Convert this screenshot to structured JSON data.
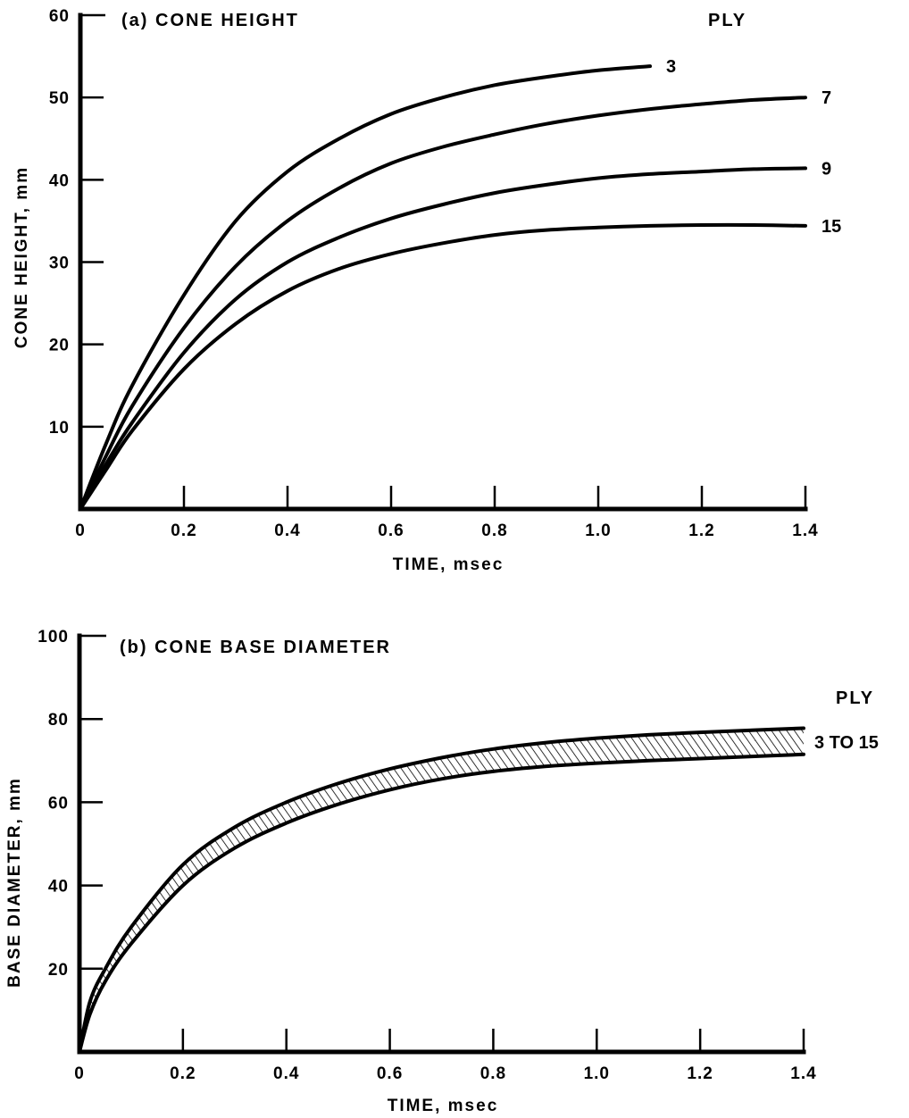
{
  "chart_data": [
    {
      "type": "line",
      "title": "(a)  CONE HEIGHT",
      "xlabel": "TIME,  msec",
      "ylabel": "CONE HEIGHT,  mm",
      "xlim": [
        0,
        1.4
      ],
      "ylim": [
        0,
        60
      ],
      "x_tick_labels": [
        "0",
        "0.2",
        "0.4",
        "0.6",
        "0.8",
        "1.0",
        "1.2",
        "1.4"
      ],
      "y_tick_labels": [
        "10",
        "20",
        "30",
        "40",
        "50",
        "60"
      ],
      "legend_title": "PLY",
      "grid": false,
      "series": [
        {
          "name": "3",
          "x": [
            0,
            0.05,
            0.1,
            0.2,
            0.3,
            0.4,
            0.5,
            0.6,
            0.7,
            0.8,
            0.9,
            1.0,
            1.1
          ],
          "y": [
            0,
            8,
            15,
            26,
            35,
            41,
            45,
            48,
            50,
            51.5,
            52.5,
            53.3,
            53.8
          ]
        },
        {
          "name": "7",
          "x": [
            0,
            0.05,
            0.1,
            0.2,
            0.3,
            0.4,
            0.5,
            0.6,
            0.7,
            0.8,
            0.9,
            1.0,
            1.1,
            1.2,
            1.3,
            1.4
          ],
          "y": [
            0,
            6.5,
            12.5,
            22,
            29.5,
            35,
            39,
            42,
            44,
            45.5,
            46.8,
            47.8,
            48.6,
            49.2,
            49.7,
            50
          ]
        },
        {
          "name": "9",
          "x": [
            0,
            0.05,
            0.1,
            0.2,
            0.3,
            0.4,
            0.5,
            0.6,
            0.7,
            0.8,
            0.9,
            1.0,
            1.1,
            1.2,
            1.3,
            1.4
          ],
          "y": [
            0,
            5.5,
            10.5,
            19,
            25.5,
            30,
            33,
            35.3,
            37,
            38.4,
            39.4,
            40.2,
            40.7,
            41,
            41.3,
            41.4
          ]
        },
        {
          "name": "15",
          "x": [
            0,
            0.05,
            0.1,
            0.2,
            0.3,
            0.4,
            0.5,
            0.6,
            0.7,
            0.8,
            0.9,
            1.0,
            1.1,
            1.2,
            1.3,
            1.4
          ],
          "y": [
            0,
            4.8,
            9.5,
            17,
            22.5,
            26.5,
            29.2,
            31,
            32.3,
            33.3,
            33.9,
            34.2,
            34.4,
            34.5,
            34.5,
            34.4
          ]
        }
      ]
    },
    {
      "type": "area",
      "title": "(b)  CONE BASE DIAMETER",
      "xlabel": "TIME,  msec",
      "ylabel": "BASE DIAMETER,  mm",
      "xlim": [
        0,
        1.4
      ],
      "ylim": [
        0,
        100
      ],
      "x_tick_labels": [
        "0",
        "0.2",
        "0.4",
        "0.6",
        "0.8",
        "1.0",
        "1.2",
        "1.4"
      ],
      "y_tick_labels": [
        "20",
        "40",
        "60",
        "80",
        "100"
      ],
      "legend_title": "PLY",
      "grid": false,
      "band": {
        "name": "3 TO 15",
        "x": [
          0,
          0.02,
          0.05,
          0.1,
          0.2,
          0.3,
          0.4,
          0.5,
          0.6,
          0.7,
          0.8,
          0.9,
          1.0,
          1.1,
          1.2,
          1.3,
          1.4
        ],
        "upper": [
          0,
          12,
          20,
          30,
          45,
          54,
          60,
          64.5,
          68,
          70.7,
          72.8,
          74.3,
          75.4,
          76.2,
          76.8,
          77.3,
          77.8
        ],
        "lower": [
          0,
          9,
          17,
          26,
          40,
          49,
          55,
          59.5,
          63,
          65.6,
          67.4,
          68.6,
          69.4,
          70,
          70.5,
          71,
          71.5
        ]
      }
    }
  ]
}
